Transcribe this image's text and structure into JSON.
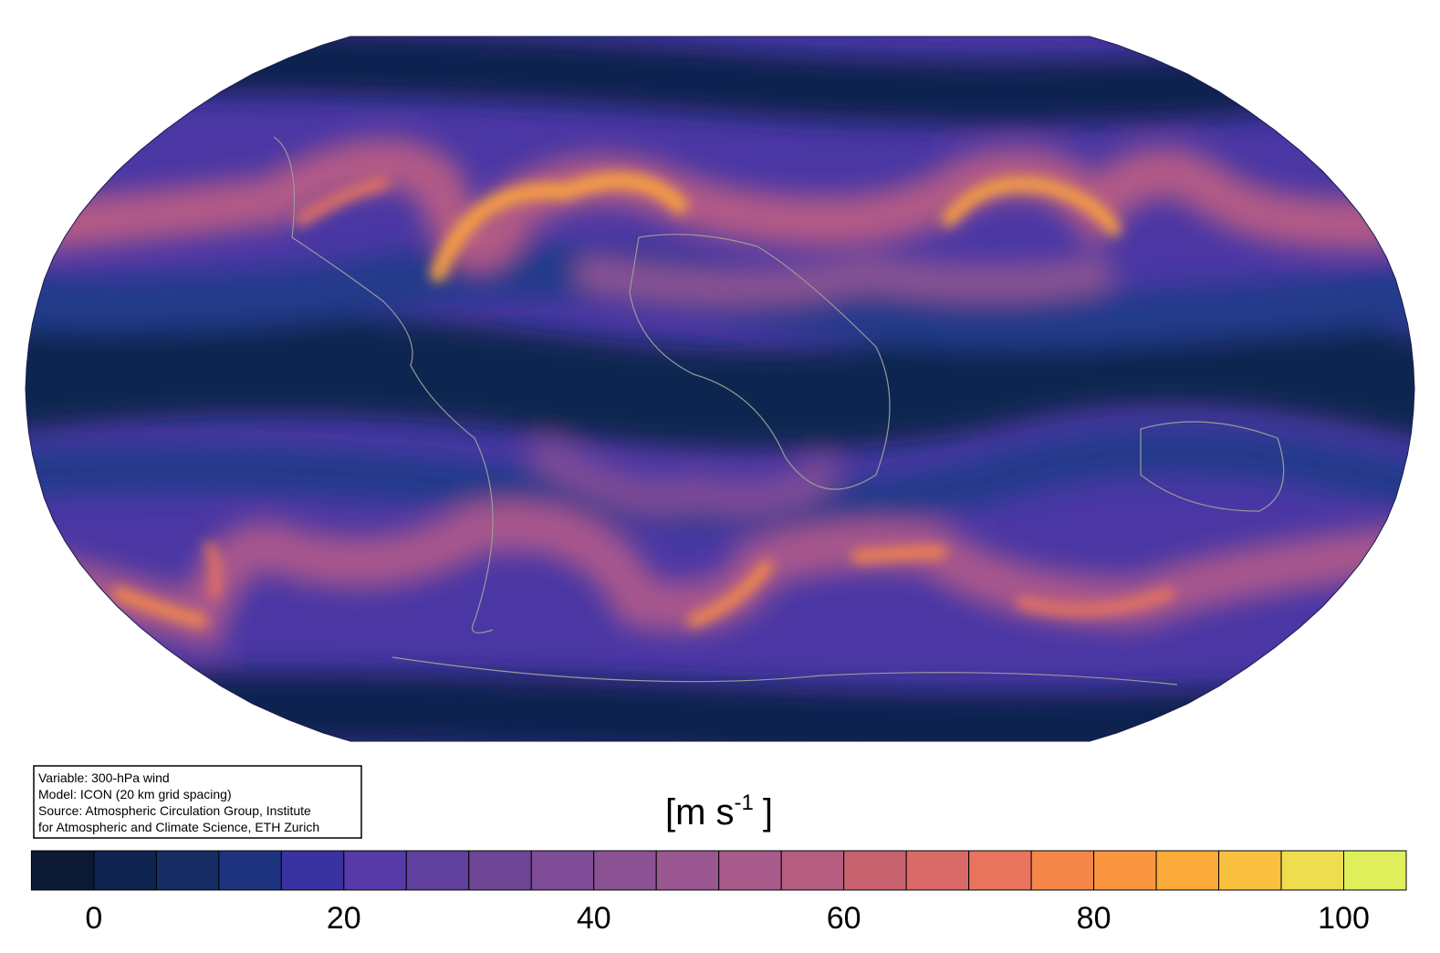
{
  "info": {
    "lines": [
      "Variable: 300-hPa wind",
      "Model: ICON (20 km grid spacing)",
      "Source: Atmospheric Circulation Group, Institute",
      "for Atmospheric and Climate Science, ETH Zurich"
    ]
  },
  "colorbar": {
    "unit": {
      "base": "[m s",
      "sup": "-1",
      "close": "]"
    },
    "bounds": [
      -5,
      0,
      5,
      10,
      15,
      20,
      25,
      30,
      35,
      40,
      45,
      50,
      55,
      60,
      65,
      70,
      75,
      80,
      85,
      90,
      95,
      100,
      105
    ],
    "colors": [
      "#0d1a33",
      "#0f2550",
      "#162d64",
      "#1e3380",
      "#3a32a0",
      "#553aa8",
      "#60409e",
      "#6f4696",
      "#7e4c96",
      "#8a5292",
      "#9a5690",
      "#a85a8a",
      "#b75e80",
      "#c9626f",
      "#d96a67",
      "#e8745e",
      "#f5864a",
      "#fa9640",
      "#fcaa3a",
      "#f9c040",
      "#efdd50",
      "#e0f05c"
    ],
    "ticks": [
      0,
      20,
      40,
      60,
      80,
      100
    ]
  }
}
